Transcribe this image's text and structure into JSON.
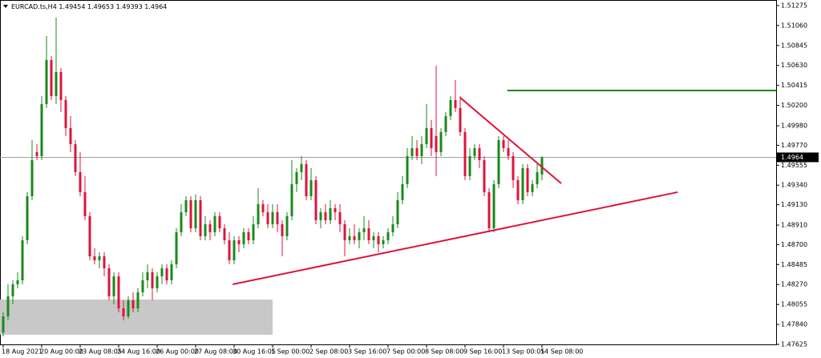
{
  "chart_data": {
    "type": "candlestick",
    "title": "EURCAD.ts,H4",
    "categories": [
      "18 Aug 2021",
      null,
      null,
      null,
      null,
      null,
      null,
      null,
      "20 Aug 00:00",
      null,
      null,
      null,
      null,
      null,
      null,
      null,
      "23 Aug 08:05",
      null,
      null,
      null,
      null,
      null,
      null,
      null,
      "24 Aug 16:00",
      null,
      null,
      null,
      null,
      null,
      null,
      null,
      "26 Aug 00:00",
      null,
      null,
      null,
      null,
      null,
      null,
      null,
      "27 Aug 08:00",
      null,
      null,
      null,
      null,
      null,
      null,
      null,
      "30 Aug 16:05",
      null,
      null,
      null,
      null,
      null,
      null,
      null,
      "1 Sep 00:00",
      null,
      null,
      null,
      null,
      null,
      null,
      null,
      "2 Sep 08:00",
      null,
      null,
      null,
      null,
      null,
      null,
      null,
      "3 Sep 16:00",
      null,
      null,
      null,
      null,
      null,
      null,
      null,
      "7 Sep 00:00",
      null,
      null,
      null,
      null,
      null,
      null,
      null,
      "8 Sep 08:00",
      null,
      null,
      null,
      null,
      null,
      null,
      null,
      "9 Sep 16:00",
      null,
      null,
      null,
      null,
      null,
      null,
      null,
      "13 Sep 00:05",
      null,
      null,
      null,
      null,
      null,
      null,
      null,
      "14 Sep 08:00"
    ],
    "open": [
      1.47754,
      1.47927,
      1.48143,
      1.48272,
      1.48315,
      1.48747,
      1.49221,
      1.49696,
      1.49653,
      1.50214,
      1.50688,
      1.503,
      1.50559,
      1.50257,
      1.49955,
      1.49782,
      1.4948,
      1.49265,
      1.49006,
      1.48574,
      1.48531,
      1.48574,
      1.48445,
      1.48143,
      1.48358,
      1.48013,
      1.47927,
      1.481,
      1.48013,
      1.48186,
      1.48315,
      1.48402,
      1.48229,
      1.48358,
      1.48445,
      1.48315,
      1.48488,
      1.48833,
      1.49049,
      1.49178,
      1.48876,
      1.49178,
      1.4879,
      1.48919,
      1.48833,
      1.49006,
      1.48876,
      1.48747,
      1.48531,
      1.48747,
      1.48704,
      1.48833,
      1.48747,
      1.48919,
      1.49135,
      1.49049,
      1.48919,
      1.49049,
      1.48919,
      1.4879,
      1.49006,
      1.49351,
      1.4948,
      1.49567,
      1.49221,
      1.49394,
      1.48962,
      1.49049,
      1.48962,
      1.49092,
      1.49049,
      1.48919,
      1.48747,
      1.4879,
      1.48747,
      1.48833,
      1.48876,
      1.48747,
      1.4879,
      1.48704,
      1.48747,
      1.48833,
      1.48919,
      1.49178,
      1.49351,
      1.49653,
      1.49739,
      1.49653,
      1.49782,
      1.49955,
      1.49869,
      1.49696,
      1.49912,
      1.50084,
      1.50257,
      1.50171,
      1.49912,
      1.49437,
      1.49653,
      1.49739,
      1.4961,
      1.49265,
      1.48876,
      1.49351,
      1.49825,
      1.49739,
      1.49653,
      1.49394,
      1.49178,
      1.49523,
      1.49265,
      1.49351,
      1.49454
    ],
    "high": [
      1.4797,
      1.48272,
      1.48315,
      1.48402,
      1.4879,
      1.49265,
      1.49825,
      1.49782,
      1.503,
      1.50947,
      1.50731,
      1.51146,
      1.50602,
      1.503,
      1.50084,
      1.49825,
      1.49696,
      1.49437,
      1.49049,
      1.4866,
      1.48617,
      1.48617,
      1.48488,
      1.48402,
      1.48402,
      1.481,
      1.48143,
      1.48186,
      1.48229,
      1.48402,
      1.48488,
      1.48445,
      1.48402,
      1.48488,
      1.48488,
      1.48531,
      1.48876,
      1.49135,
      1.49221,
      1.49221,
      1.49239,
      1.49221,
      1.49006,
      1.48962,
      1.49049,
      1.49049,
      1.48919,
      1.48833,
      1.4879,
      1.4879,
      1.48876,
      1.48876,
      1.49006,
      1.49308,
      1.49178,
      1.49135,
      1.49135,
      1.49135,
      1.48962,
      1.49049,
      1.4961,
      1.49523,
      1.49653,
      1.4961,
      1.49523,
      1.49437,
      1.49092,
      1.49135,
      1.49178,
      1.49135,
      1.49135,
      1.48962,
      1.48876,
      1.48919,
      1.48876,
      1.49006,
      1.48962,
      1.48833,
      1.48833,
      1.4879,
      1.48876,
      1.49006,
      1.49265,
      1.49437,
      1.49739,
      1.49869,
      1.49825,
      1.49869,
      1.50214,
      1.50041,
      1.50628,
      1.49955,
      1.50127,
      1.503,
      1.50473,
      1.503,
      1.49955,
      1.49739,
      1.49782,
      1.49782,
      1.49653,
      1.49308,
      1.49394,
      1.49869,
      1.49869,
      1.49825,
      1.49696,
      1.49437,
      1.49567,
      1.49567,
      1.49394,
      1.49567,
      1.49653
    ],
    "low": [
      1.47711,
      1.47884,
      1.48056,
      1.48229,
      1.48272,
      1.48704,
      1.49178,
      1.4961,
      1.4961,
      1.50171,
      1.50257,
      1.50214,
      1.50127,
      1.49869,
      1.49696,
      1.49437,
      1.49221,
      1.48962,
      1.48531,
      1.48488,
      1.48445,
      1.48358,
      1.481,
      1.48056,
      1.4797,
      1.47884,
      1.47901,
      1.4797,
      1.4797,
      1.48143,
      1.48229,
      1.481,
      1.48186,
      1.48272,
      1.48272,
      1.48272,
      1.48445,
      1.4879,
      1.49006,
      1.48833,
      1.48833,
      1.48747,
      1.48747,
      1.48747,
      1.4879,
      1.48833,
      1.48704,
      1.48488,
      1.48488,
      1.48617,
      1.4866,
      1.48704,
      1.48704,
      1.48876,
      1.49006,
      1.48876,
      1.48876,
      1.48833,
      1.48574,
      1.48747,
      1.48962,
      1.49265,
      1.49394,
      1.49178,
      1.49178,
      1.48919,
      1.48876,
      1.48919,
      1.48919,
      1.48962,
      1.48833,
      1.48574,
      1.48704,
      1.48704,
      1.4866,
      1.48747,
      1.48704,
      1.4866,
      1.48617,
      1.4866,
      1.48704,
      1.4879,
      1.48876,
      1.49135,
      1.49308,
      1.4961,
      1.4961,
      1.49567,
      1.49739,
      1.49653,
      1.49437,
      1.49653,
      1.49869,
      1.50041,
      1.50127,
      1.49869,
      1.49394,
      1.49394,
      1.4961,
      1.49523,
      1.49221,
      1.48833,
      1.48833,
      1.49308,
      1.49696,
      1.4961,
      1.49308,
      1.49135,
      1.49135,
      1.49221,
      1.49221,
      1.49308,
      1.49393
    ],
    "close": [
      1.47927,
      1.48143,
      1.48272,
      1.48315,
      1.48747,
      1.49221,
      1.4961,
      1.49653,
      1.50214,
      1.50688,
      1.503,
      1.50559,
      1.50257,
      1.49955,
      1.49782,
      1.4948,
      1.49265,
      1.49006,
      1.48574,
      1.48531,
      1.48574,
      1.48445,
      1.48143,
      1.48358,
      1.48013,
      1.47927,
      1.481,
      1.48013,
      1.48186,
      1.48315,
      1.48402,
      1.48229,
      1.48358,
      1.48445,
      1.48315,
      1.48488,
      1.48833,
      1.49049,
      1.49178,
      1.48876,
      1.49178,
      1.4879,
      1.48919,
      1.48833,
      1.49006,
      1.48876,
      1.48747,
      1.48531,
      1.48747,
      1.48704,
      1.48833,
      1.48747,
      1.48919,
      1.49135,
      1.49049,
      1.48919,
      1.49049,
      1.48919,
      1.4879,
      1.49006,
      1.49351,
      1.4948,
      1.49567,
      1.49221,
      1.49394,
      1.48962,
      1.49049,
      1.48962,
      1.49092,
      1.49049,
      1.48919,
      1.48747,
      1.4879,
      1.48747,
      1.48833,
      1.48876,
      1.48747,
      1.4879,
      1.48704,
      1.48747,
      1.48833,
      1.48919,
      1.49178,
      1.49351,
      1.49653,
      1.49739,
      1.49653,
      1.49782,
      1.49955,
      1.49739,
      1.49696,
      1.49912,
      1.50084,
      1.50257,
      1.50171,
      1.49912,
      1.49437,
      1.49653,
      1.49739,
      1.4961,
      1.49265,
      1.48876,
      1.49351,
      1.49825,
      1.49739,
      1.49653,
      1.49394,
      1.49178,
      1.49523,
      1.49265,
      1.49351,
      1.4948,
      1.4964
    ],
    "up_color": "#1a8a1a",
    "down_color": "#dc143c",
    "ylim": [
      1.47625,
      1.51335
    ],
    "yticks": [
      1.51275,
      {
        "value": 1.5106,
        "label": "1.51060"
      },
      1.50845,
      {
        "value": 1.5063,
        "label": "1.50630"
      },
      1.50415,
      {
        "value": 1.502,
        "label": "1.50200"
      },
      {
        "value": 1.4998,
        "label": "1.49980"
      },
      {
        "value": 1.4977,
        "label": "1.49770"
      },
      1.49555,
      {
        "value": 1.4934,
        "label": "1.49340"
      },
      {
        "value": 1.4913,
        "label": "1.49130"
      },
      {
        "value": 1.4891,
        "label": "1.48910"
      },
      {
        "value": 1.487,
        "label": "1.48700"
      },
      1.48485,
      {
        "value": 1.4827,
        "label": "1.48270"
      },
      1.48055,
      {
        "value": 1.4784,
        "label": "1.47840"
      },
      1.47625
    ],
    "zone": {
      "x": [
        0,
        56
      ],
      "y": [
        1.47729,
        1.48108
      ],
      "color": "#c8c8c8"
    },
    "trendlines": [
      {
        "x": [
          47.7,
          140.2
        ],
        "y": [
          1.48272,
          1.49265
        ],
        "color": "#dc143c"
      },
      {
        "x": [
          95,
          116
        ],
        "y": [
          1.50283,
          1.49359
        ],
        "color": "#dc143c"
      }
    ],
    "hline": {
      "x": 104.8,
      "y": 1.5036,
      "color": "#1a8a1a"
    }
  }
}
